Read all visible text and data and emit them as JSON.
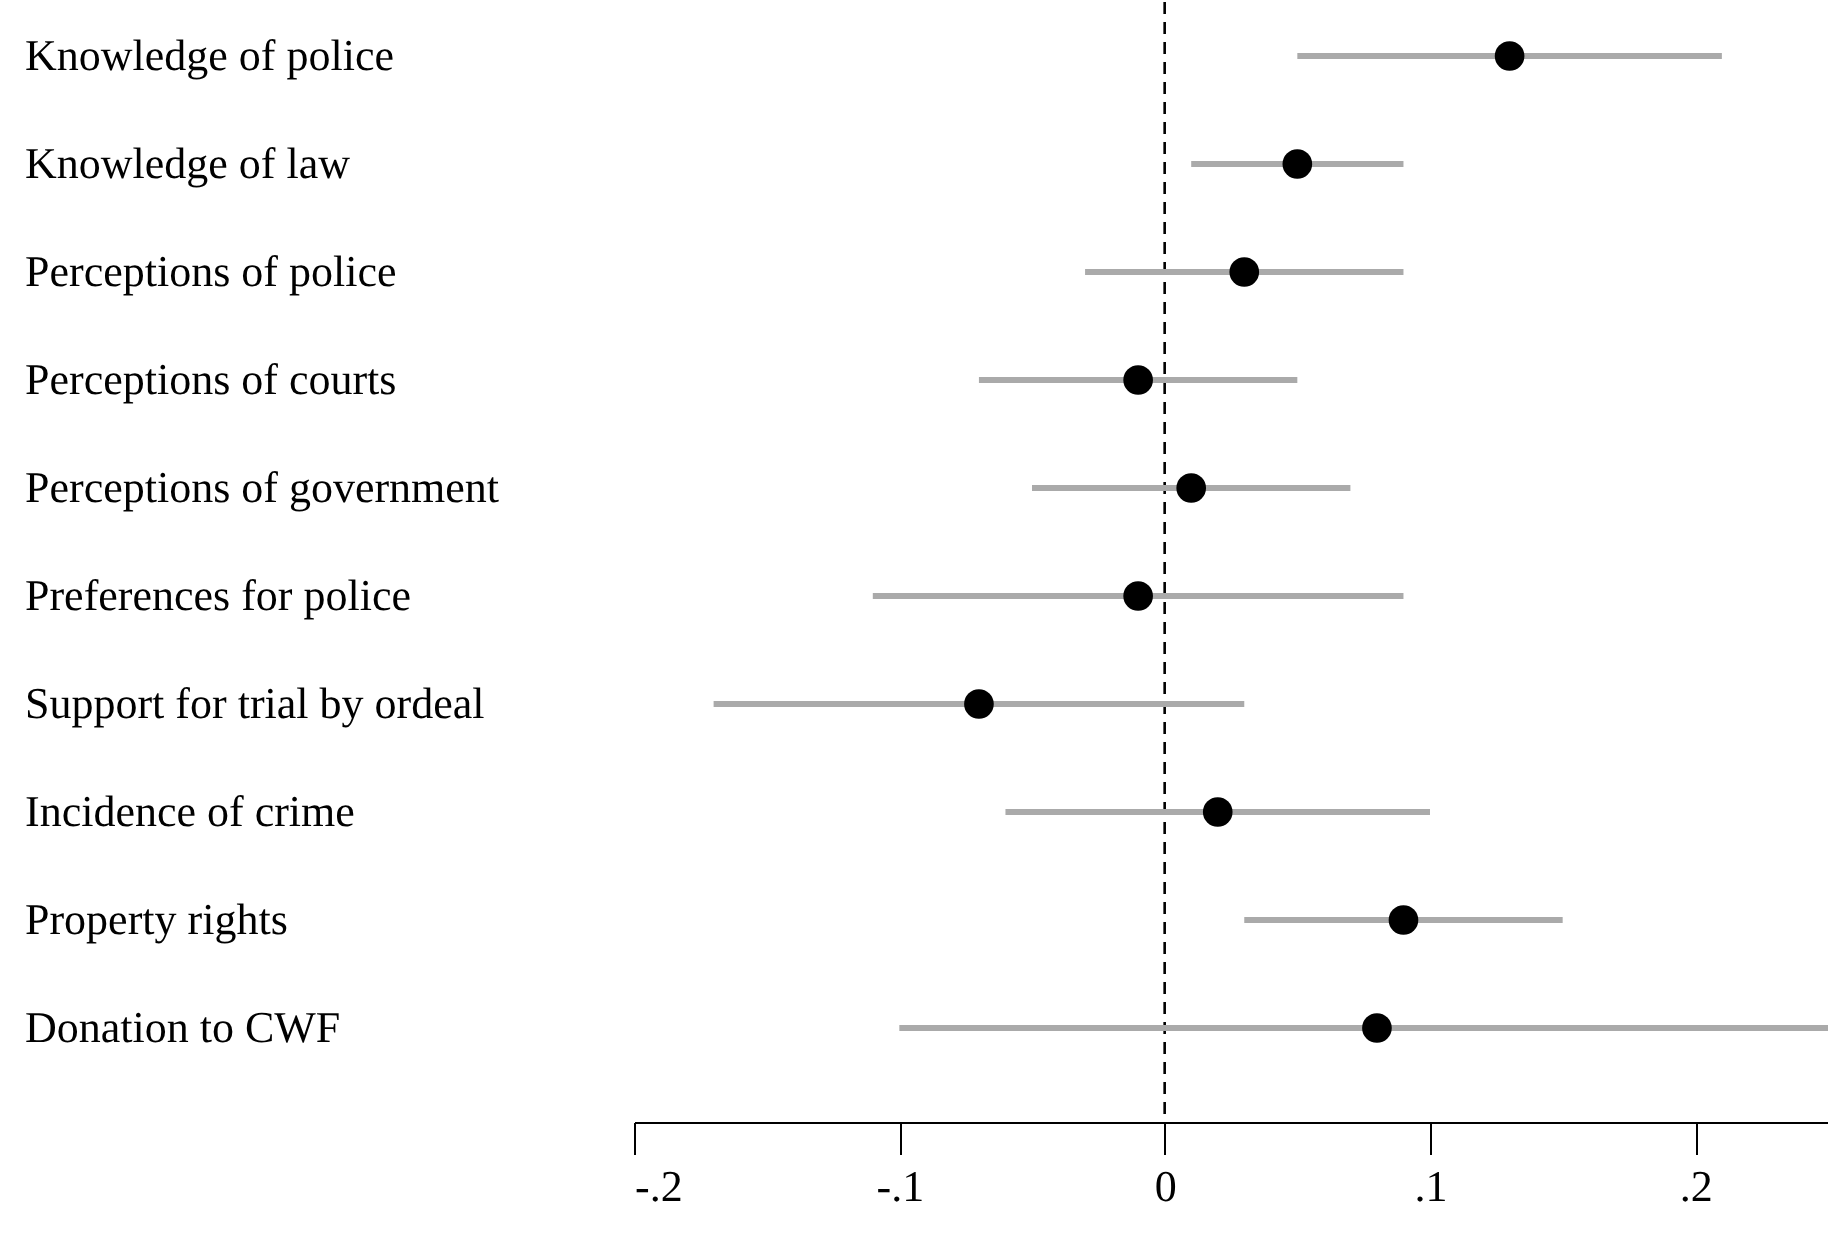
{
  "chart_data": {
    "type": "scatter",
    "orientation": "horizontal",
    "categories": [
      "Knowledge of police",
      "Knowledge of law",
      "Perceptions of police",
      "Perceptions of courts",
      "Perceptions of government",
      "Preferences for police",
      "Support for trial by ordeal",
      "Incidence of crime",
      "Property rights",
      "Donation to CWF"
    ],
    "series": [
      {
        "color": "#000000",
        "values": [
          0.13,
          0.05,
          0.03,
          -0.01,
          0.01,
          -0.01,
          -0.07,
          0.02,
          0.09,
          0.08
        ],
        "errors": [
          [
            0.05,
            0.21
          ],
          [
            0.01,
            0.09
          ],
          [
            -0.03,
            0.09
          ],
          [
            -0.07,
            0.05
          ],
          [
            -0.05,
            0.07
          ],
          [
            -0.11,
            0.09
          ],
          [
            -0.17,
            0.03
          ],
          [
            -0.06,
            0.1
          ],
          [
            0.03,
            0.15
          ],
          [
            -0.1,
            0.25
          ]
        ]
      }
    ],
    "xlim": [
      -0.2,
      0.25
    ],
    "xticks": [
      {
        "value": -0.2,
        "label": "-.2"
      },
      {
        "value": -0.1,
        "label": "-.1"
      },
      0,
      {
        "value": 0.1,
        "label": ".1"
      },
      {
        "value": 0.2,
        "label": ".2"
      }
    ],
    "ref_lines": [
      {
        "axis": "x",
        "value": 0,
        "color": "#000000",
        "line_style": "dashed"
      }
    ],
    "grid": false,
    "marker": "circle"
  }
}
